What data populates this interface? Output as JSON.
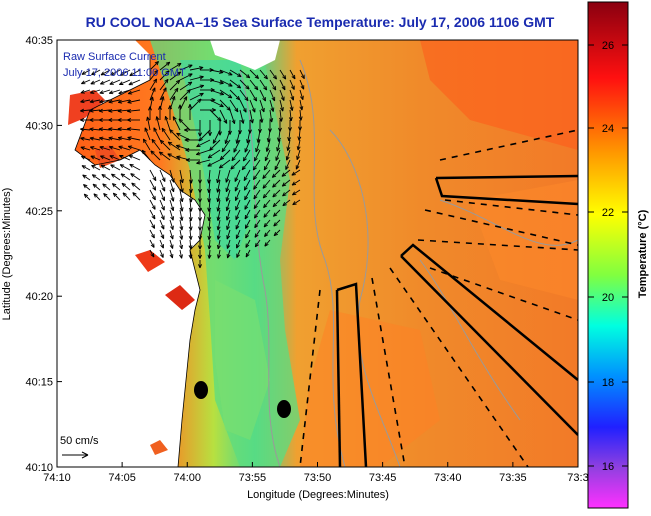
{
  "title": "RU COOL  NOAA–15  Sea Surface Temperature:  July 17, 2006 1106 GMT",
  "legend_title": "Raw Surface Current",
  "legend_time": "July 17, 2006 11:00 GMT",
  "scale_label": "50 cm/s",
  "xlabel": "Longitude (Degrees:Minutes)",
  "ylabel": "Latitude (Degrees:Minutes)",
  "colorbar_label": "Temperature (°C)",
  "x_ticks": [
    "74:10",
    "74:05",
    "74:00",
    "73:55",
    "73:50",
    "73:45",
    "73:40",
    "73:35",
    "73:3"
  ],
  "y_ticks": [
    "40:35",
    "40:30",
    "40:25",
    "40:20",
    "40:15",
    "40:10"
  ],
  "colorbar_ticks": [
    "26",
    "24",
    "22",
    "20",
    "18",
    "16"
  ],
  "colors": {
    "title": "#1a2bb0",
    "ocean_warm": "#f08a2a",
    "ocean_cold": "#40d890",
    "land": "#ffffff"
  }
}
